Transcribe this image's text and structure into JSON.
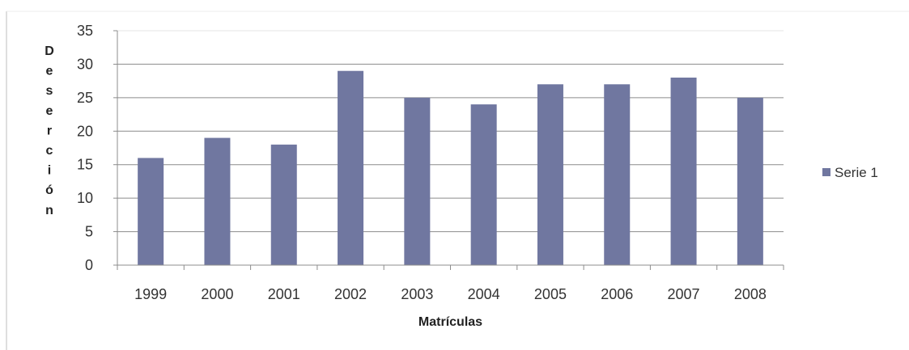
{
  "chart_data": {
    "type": "bar",
    "categories": [
      "1999",
      "2000",
      "2001",
      "2002",
      "2003",
      "2004",
      "2005",
      "2006",
      "2007",
      "2008"
    ],
    "series": [
      {
        "name": "Serie 1",
        "values": [
          16,
          19,
          18,
          29,
          25,
          24,
          27,
          27,
          28,
          25
        ]
      }
    ],
    "title": "",
    "xlabel": "Matrículas",
    "ylabel": "Deserción",
    "ylim": [
      0,
      35
    ],
    "yticks": [
      0,
      5,
      10,
      15,
      20,
      25,
      30,
      35
    ],
    "grid": true,
    "legend_position": "right",
    "bar_color": "#7077a0",
    "grid_color": "#8c8c8c"
  }
}
